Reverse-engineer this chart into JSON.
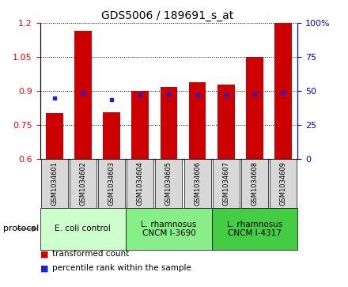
{
  "title": "GDS5006 / 189691_s_at",
  "samples": [
    "GSM1034601",
    "GSM1034602",
    "GSM1034603",
    "GSM1034604",
    "GSM1034605",
    "GSM1034606",
    "GSM1034607",
    "GSM1034608",
    "GSM1034609"
  ],
  "transformed_counts": [
    0.805,
    1.165,
    0.808,
    0.9,
    0.92,
    0.94,
    0.93,
    1.05,
    1.2
  ],
  "percentile_ranks_pct": [
    45,
    49,
    44,
    47,
    48,
    47,
    47,
    48,
    49
  ],
  "ylim_left": [
    0.6,
    1.2
  ],
  "ylim_right": [
    0,
    100
  ],
  "yticks_left": [
    0.6,
    0.75,
    0.9,
    1.05,
    1.2
  ],
  "yticks_right": [
    0,
    25,
    50,
    75,
    100
  ],
  "bar_color": "#cc0000",
  "dot_color": "#2222cc",
  "protocol_groups": [
    {
      "label": "E. coli control",
      "start": 0,
      "end": 3,
      "color": "#ccffcc"
    },
    {
      "label": "L. rhamnosus\nCNCM I-3690",
      "start": 3,
      "end": 6,
      "color": "#88ee88"
    },
    {
      "label": "L. rhamnosus\nCNCM I-4317",
      "start": 6,
      "end": 9,
      "color": "#44cc44"
    }
  ],
  "legend": [
    {
      "symbol": "s",
      "color": "#cc0000",
      "label": "transformed count"
    },
    {
      "symbol": "s",
      "color": "#2222cc",
      "label": "percentile rank within the sample"
    }
  ]
}
